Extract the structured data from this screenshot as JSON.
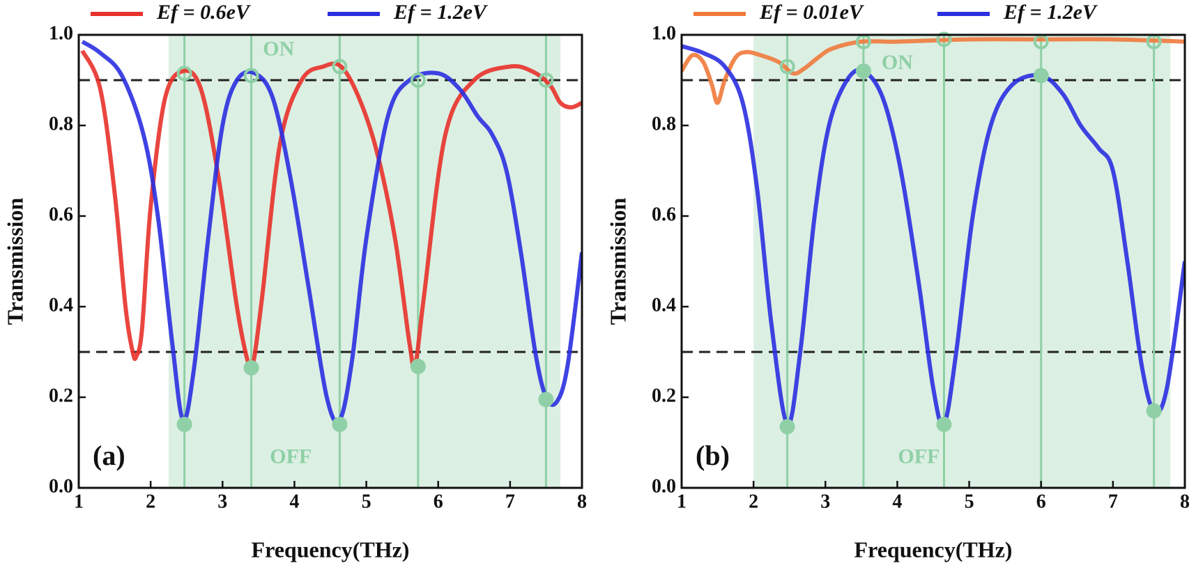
{
  "chart_data": [
    {
      "type": "line",
      "panel_label": "(a)",
      "xlabel": "Frequency(THz)",
      "ylabel": "Transmission",
      "xlim": [
        1,
        8
      ],
      "ylim": [
        0,
        1
      ],
      "xticks": [
        1,
        2,
        3,
        4,
        5,
        6,
        7,
        8
      ],
      "yticks": [
        {
          "value": 0,
          "label": "0.0"
        },
        0.2,
        0.4,
        0.6,
        0.8,
        {
          "value": 1,
          "label": "1.0"
        }
      ],
      "shaded_region": [
        2.25,
        7.7
      ],
      "region_color": "#dcefe3",
      "thresholds": [
        0.9,
        0.3
      ],
      "annotations": [
        "ON",
        "OFF"
      ],
      "series": [
        {
          "name": "Ef = 0.6eV",
          "color": "#e8312a",
          "x": [
            1.05,
            1.3,
            1.5,
            1.65,
            1.75,
            1.8,
            1.88,
            2.0,
            2.2,
            2.45,
            2.7,
            2.95,
            3.2,
            3.35,
            3.42,
            3.55,
            3.8,
            4.1,
            4.4,
            4.65,
            4.9,
            5.15,
            5.4,
            5.6,
            5.68,
            5.8,
            6.1,
            6.5,
            7.0,
            7.3,
            7.55,
            7.7,
            7.85,
            8.0
          ],
          "values": [
            0.965,
            0.88,
            0.65,
            0.4,
            0.3,
            0.29,
            0.35,
            0.62,
            0.86,
            0.92,
            0.88,
            0.68,
            0.4,
            0.28,
            0.27,
            0.42,
            0.76,
            0.9,
            0.93,
            0.93,
            0.86,
            0.74,
            0.55,
            0.32,
            0.27,
            0.42,
            0.78,
            0.9,
            0.93,
            0.92,
            0.89,
            0.85,
            0.84,
            0.85
          ]
        },
        {
          "name": "Ef = 1.2eV",
          "color": "#2b2fe0",
          "x": [
            1.05,
            1.3,
            1.6,
            1.9,
            2.1,
            2.3,
            2.45,
            2.6,
            2.8,
            3.0,
            3.2,
            3.45,
            3.7,
            3.95,
            4.2,
            4.45,
            4.63,
            4.8,
            5.0,
            5.3,
            5.6,
            6.0,
            6.3,
            6.55,
            6.75,
            6.95,
            7.15,
            7.35,
            7.5,
            7.65,
            7.8,
            8.0
          ],
          "values": [
            0.985,
            0.96,
            0.91,
            0.78,
            0.6,
            0.32,
            0.15,
            0.26,
            0.55,
            0.8,
            0.9,
            0.915,
            0.86,
            0.68,
            0.44,
            0.2,
            0.15,
            0.28,
            0.55,
            0.82,
            0.9,
            0.915,
            0.88,
            0.82,
            0.78,
            0.7,
            0.52,
            0.3,
            0.2,
            0.19,
            0.27,
            0.52
          ]
        }
      ],
      "markers": {
        "color": "#8fd0a6",
        "x": [
          2.47,
          3.4,
          4.63,
          5.72,
          7.5
        ],
        "on": [
          0.915,
          0.91,
          0.93,
          0.9,
          0.9
        ],
        "off": [
          0.14,
          0.265,
          0.14,
          0.268,
          0.195
        ]
      }
    },
    {
      "type": "line",
      "panel_label": "(b)",
      "xlabel": "Frequency(THz)",
      "ylabel": "Transmission",
      "xlim": [
        1,
        8
      ],
      "ylim": [
        0,
        1
      ],
      "xticks": [
        1,
        2,
        3,
        4,
        5,
        6,
        7,
        8
      ],
      "yticks": [
        {
          "value": 0,
          "label": "0.0"
        },
        0.2,
        0.4,
        0.6,
        0.8,
        {
          "value": 1,
          "label": "1.0"
        }
      ],
      "shaded_region": [
        2.0,
        7.8
      ],
      "region_color": "#dcefe3",
      "thresholds": [
        0.9,
        0.3
      ],
      "annotations": [
        "ON",
        "OFF"
      ],
      "series": [
        {
          "name": "Ef = 0.01eV",
          "color": "#f07a3c",
          "x": [
            1.0,
            1.15,
            1.3,
            1.42,
            1.5,
            1.6,
            1.75,
            1.9,
            2.1,
            2.35,
            2.55,
            2.7,
            2.9,
            3.1,
            3.5,
            4.0,
            5.0,
            6.0,
            7.0,
            8.0
          ],
          "values": [
            0.92,
            0.955,
            0.94,
            0.89,
            0.85,
            0.9,
            0.95,
            0.962,
            0.955,
            0.94,
            0.915,
            0.925,
            0.95,
            0.97,
            0.985,
            0.985,
            0.99,
            0.99,
            0.99,
            0.985
          ]
        },
        {
          "name": "Ef = 1.2eV",
          "color": "#2b2fe0",
          "x": [
            1.0,
            1.3,
            1.6,
            1.85,
            2.05,
            2.25,
            2.47,
            2.65,
            2.85,
            3.05,
            3.3,
            3.53,
            3.8,
            4.05,
            4.3,
            4.5,
            4.65,
            4.82,
            5.05,
            5.3,
            5.6,
            6.0,
            6.3,
            6.55,
            6.8,
            7.0,
            7.2,
            7.4,
            7.57,
            7.75,
            8.0
          ],
          "values": [
            0.975,
            0.96,
            0.93,
            0.85,
            0.66,
            0.36,
            0.14,
            0.3,
            0.6,
            0.8,
            0.9,
            0.92,
            0.86,
            0.7,
            0.45,
            0.22,
            0.14,
            0.3,
            0.6,
            0.8,
            0.89,
            0.91,
            0.87,
            0.8,
            0.75,
            0.7,
            0.5,
            0.27,
            0.17,
            0.22,
            0.5
          ]
        }
      ],
      "markers": {
        "color": "#8fd0a6",
        "x": [
          2.47,
          3.53,
          4.65,
          6.0,
          7.57
        ],
        "on": [
          0.93,
          0.985,
          0.99,
          0.985,
          0.985
        ],
        "off": [
          0.135,
          0.92,
          0.14,
          0.91,
          0.17
        ]
      }
    }
  ]
}
